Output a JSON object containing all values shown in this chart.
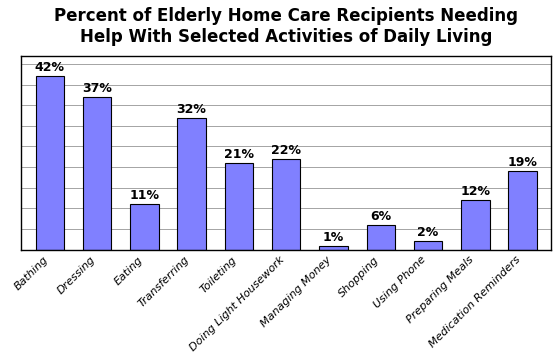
{
  "title": "Percent of Elderly Home Care Recipients Needing\nHelp With Selected Activities of Daily Living",
  "categories": [
    "Bathing",
    "Dressing",
    "Eating",
    "Transferring",
    "Toileting",
    "Doing Light Housework",
    "Managing Money",
    "Shopping",
    "Using Phone",
    "Preparing Meals",
    "Medication Reminders"
  ],
  "values": [
    42,
    37,
    11,
    32,
    21,
    22,
    1,
    6,
    2,
    12,
    19
  ],
  "labels": [
    "42%",
    "37%",
    "11%",
    "32%",
    "21%",
    "22%",
    "1%",
    "6%",
    "2%",
    "12%",
    "19%"
  ],
  "bar_color": "#8080ff",
  "bar_edge_color": "#000000",
  "background_color": "#ffffff",
  "title_fontsize": 12,
  "label_fontsize": 9,
  "tick_fontsize": 8,
  "ylim": [
    0,
    47
  ],
  "yticks": [
    0,
    5,
    10,
    15,
    20,
    25,
    30,
    35,
    40,
    45
  ]
}
